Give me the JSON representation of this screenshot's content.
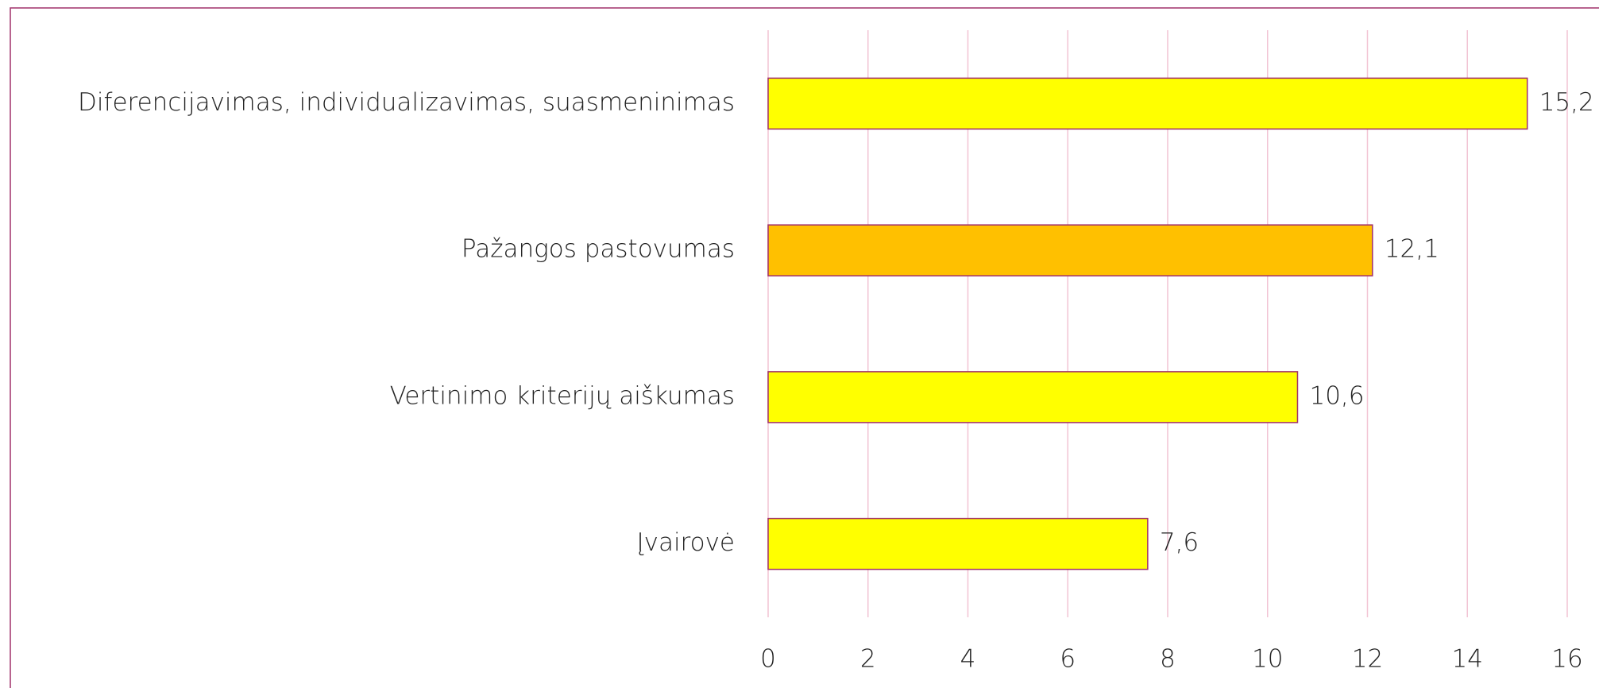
{
  "chart_data": {
    "type": "bar",
    "orientation": "horizontal",
    "categories": [
      "Diferencijavimas, individualizavimas, suasmeninimas",
      "Pažangos pastovumas",
      "Vertinimo kriterijų aiškumas",
      "Įvairovė"
    ],
    "values": [
      15.2,
      12.1,
      10.6,
      7.6
    ],
    "value_labels": [
      "15,2",
      "12,1",
      "10,6",
      "7,6"
    ],
    "colors": [
      "#ffff00",
      "#ffc000",
      "#ffff00",
      "#ffff00"
    ],
    "xlim": [
      0,
      16
    ],
    "xticks": [
      0,
      2,
      4,
      6,
      8,
      10,
      12,
      14,
      16
    ],
    "grid": true
  }
}
